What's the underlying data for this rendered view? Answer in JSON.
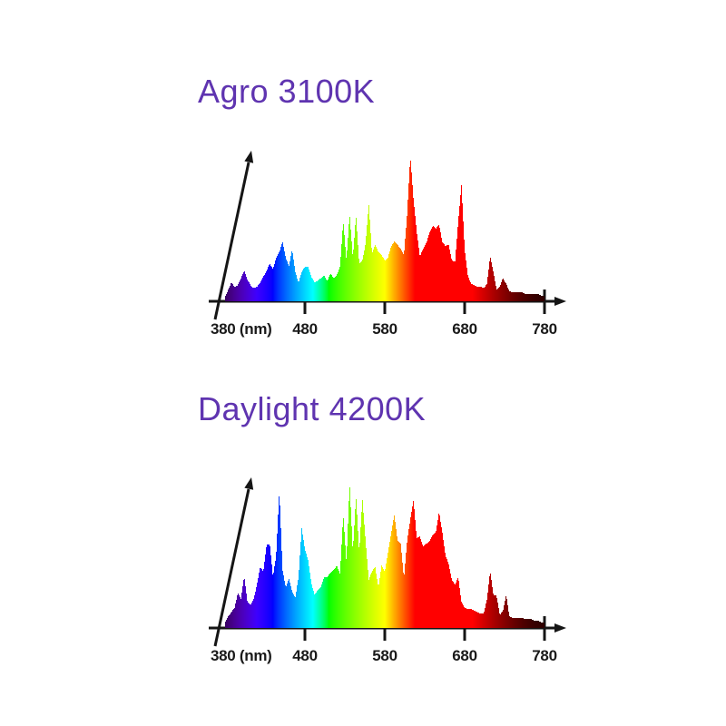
{
  "page": {
    "background": "#ffffff",
    "accent_color": "#5F34B0",
    "axis_color": "#151515",
    "label_color": "#1a1a1a"
  },
  "chart_data": [
    {
      "id": "agro",
      "type": "area",
      "title": "Agro 3100K",
      "xlabel": "(nm)",
      "tick_labels": [
        "380 (nm)",
        "480",
        "580",
        "680",
        "780"
      ],
      "xticks": [
        380,
        480,
        580,
        680,
        780
      ],
      "xlim": [
        380,
        780
      ],
      "ylim": [
        0,
        1
      ],
      "grid": false,
      "legend": "none",
      "color_mode": "spectral-by-wavelength",
      "x_start": 380,
      "x_step": 4,
      "values": [
        0.03,
        0.08,
        0.13,
        0.1,
        0.11,
        0.16,
        0.21,
        0.15,
        0.11,
        0.09,
        0.1,
        0.13,
        0.17,
        0.21,
        0.26,
        0.22,
        0.3,
        0.34,
        0.41,
        0.3,
        0.24,
        0.36,
        0.2,
        0.13,
        0.2,
        0.24,
        0.24,
        0.17,
        0.13,
        0.14,
        0.16,
        0.18,
        0.14,
        0.19,
        0.16,
        0.18,
        0.24,
        0.55,
        0.28,
        0.6,
        0.3,
        0.59,
        0.26,
        0.28,
        0.4,
        0.67,
        0.33,
        0.39,
        0.34,
        0.32,
        0.28,
        0.3,
        0.38,
        0.41,
        0.39,
        0.36,
        0.32,
        0.6,
        1.0,
        0.7,
        0.48,
        0.31,
        0.36,
        0.4,
        0.47,
        0.52,
        0.5,
        0.53,
        0.41,
        0.38,
        0.39,
        0.28,
        0.27,
        0.55,
        0.8,
        0.36,
        0.18,
        0.12,
        0.11,
        0.1,
        0.1,
        0.09,
        0.12,
        0.31,
        0.2,
        0.08,
        0.1,
        0.16,
        0.12,
        0.07,
        0.06,
        0.06,
        0.06,
        0.06,
        0.05,
        0.05,
        0.05,
        0.05,
        0.05,
        0.04,
        0.04
      ]
    },
    {
      "id": "daylight",
      "type": "area",
      "title": "Daylight 4200K",
      "xlabel": "(nm)",
      "tick_labels": [
        "380 (nm)",
        "480",
        "580",
        "680",
        "780"
      ],
      "xticks": [
        380,
        480,
        580,
        680,
        780
      ],
      "xlim": [
        380,
        780
      ],
      "ylim": [
        0,
        1
      ],
      "grid": false,
      "legend": "none",
      "color_mode": "spectral-by-wavelength",
      "x_start": 380,
      "x_step": 4,
      "values": [
        0.04,
        0.08,
        0.11,
        0.14,
        0.24,
        0.2,
        0.36,
        0.18,
        0.16,
        0.2,
        0.3,
        0.42,
        0.39,
        0.57,
        0.58,
        0.35,
        0.5,
        0.95,
        0.4,
        0.28,
        0.34,
        0.25,
        0.21,
        0.35,
        0.69,
        0.54,
        0.47,
        0.31,
        0.23,
        0.26,
        0.28,
        0.35,
        0.35,
        0.38,
        0.4,
        0.43,
        0.37,
        0.78,
        0.45,
        1.0,
        0.52,
        0.91,
        0.52,
        0.89,
        0.6,
        0.33,
        0.39,
        0.42,
        0.28,
        0.43,
        0.39,
        0.52,
        0.65,
        0.78,
        0.6,
        0.58,
        0.34,
        0.6,
        0.75,
        0.88,
        0.62,
        0.63,
        0.56,
        0.58,
        0.6,
        0.64,
        0.66,
        0.8,
        0.66,
        0.5,
        0.44,
        0.33,
        0.3,
        0.35,
        0.18,
        0.14,
        0.13,
        0.13,
        0.12,
        0.11,
        0.1,
        0.1,
        0.2,
        0.39,
        0.23,
        0.22,
        0.09,
        0.12,
        0.23,
        0.08,
        0.07,
        0.07,
        0.07,
        0.07,
        0.06,
        0.06,
        0.06,
        0.05,
        0.05,
        0.04,
        0.04
      ]
    }
  ]
}
